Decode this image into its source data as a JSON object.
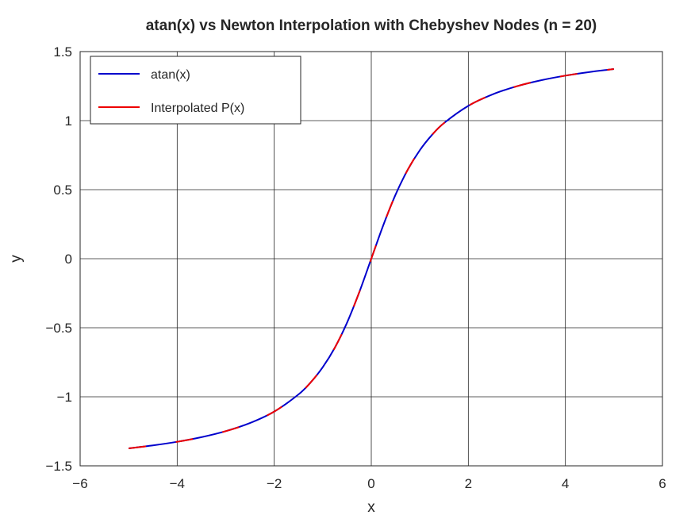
{
  "chart_data": {
    "type": "line",
    "title": "atan(x) vs Newton Interpolation with Chebyshev Nodes (n = 20)",
    "xlabel": "x",
    "ylabel": "y",
    "xlim": [
      -6,
      6
    ],
    "ylim": [
      -1.5,
      1.5
    ],
    "grid": true,
    "legend_position": "top-left",
    "x_ticks": [
      -6,
      -4,
      -2,
      0,
      2,
      4,
      6
    ],
    "x_tick_labels": [
      "−6",
      "−4",
      "−2",
      "0",
      "2",
      "4",
      "6"
    ],
    "y_ticks": [
      -1.5,
      -1,
      -0.5,
      0,
      0.5,
      1,
      1.5
    ],
    "y_tick_labels": [
      "−1.5",
      "−1",
      "−0.5",
      "0",
      "0.5",
      "1",
      "1.5"
    ],
    "series": [
      {
        "name": "atan(x)",
        "color": "#0000cc",
        "x": [
          -5,
          -4.5,
          -4,
          -3.5,
          -3,
          -2.5,
          -2,
          -1.5,
          -1.25,
          -1,
          -0.75,
          -0.5,
          -0.25,
          0,
          0.25,
          0.5,
          0.75,
          1,
          1.25,
          1.5,
          2,
          2.5,
          3,
          3.5,
          4,
          4.5,
          5
        ],
        "y": [
          -1.3734,
          -1.3521,
          -1.3258,
          -1.2925,
          -1.249,
          -1.1903,
          -1.1071,
          -0.9828,
          -0.8961,
          -0.7854,
          -0.6435,
          -0.4636,
          -0.245,
          0,
          0.245,
          0.4636,
          0.6435,
          0.7854,
          0.8961,
          0.9828,
          1.1071,
          1.1903,
          1.249,
          1.2925,
          1.3258,
          1.3521,
          1.3734
        ]
      },
      {
        "name": "Interpolated P(x)",
        "color": "#ee0000",
        "style": "dashed",
        "x": [
          -5,
          -4.5,
          -4,
          -3.5,
          -3,
          -2.5,
          -2,
          -1.5,
          -1.25,
          -1,
          -0.75,
          -0.5,
          -0.25,
          0,
          0.25,
          0.5,
          0.75,
          1,
          1.25,
          1.5,
          2,
          2.5,
          3,
          3.5,
          4,
          4.5,
          5
        ],
        "y": [
          -1.3734,
          -1.3521,
          -1.3258,
          -1.2925,
          -1.249,
          -1.1903,
          -1.1071,
          -0.9828,
          -0.8961,
          -0.7854,
          -0.6435,
          -0.4636,
          -0.245,
          0,
          0.245,
          0.4636,
          0.6435,
          0.7854,
          0.8961,
          0.9828,
          1.1071,
          1.1903,
          1.249,
          1.2925,
          1.3258,
          1.3521,
          1.3734
        ]
      }
    ]
  }
}
